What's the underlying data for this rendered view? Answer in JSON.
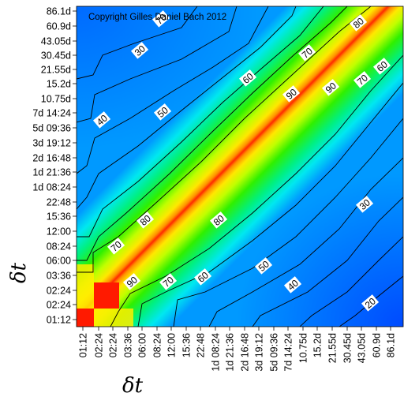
{
  "chart_data": {
    "type": "heatmap",
    "watermark": "Copyright Gilles Daniel Bach 2012",
    "xlabel": "δt",
    "ylabel": "δt",
    "x_ticks": [
      "01:12",
      "02:24",
      "02:24",
      "03:36",
      "06:00",
      "08:24",
      "12:00",
      "15:36",
      "22:48",
      "1d 08:24",
      "1d 21:36",
      "2d 16:48",
      "3d 19:12",
      "5d 09:36",
      "7d 14:24",
      "10.75d",
      "15.2d",
      "21.55d",
      "30.45d",
      "43.05d",
      "60.9d",
      "86.1d"
    ],
    "y_ticks": [
      "01:12",
      "02:24",
      "02:24",
      "03:36",
      "06:00",
      "08:24",
      "12:00",
      "15:36",
      "22:48",
      "1d 08:24",
      "1d 21:36",
      "2d 16:48",
      "3d 19:12",
      "5d 09:36",
      "7d 14:24",
      "10.75d",
      "15.2d",
      "21.55d",
      "30.45d",
      "43.05d",
      "60.9d",
      "86.1d"
    ],
    "contour_levels": [
      20,
      30,
      40,
      50,
      60,
      70,
      80,
      90
    ],
    "contour_labels": [
      "70",
      "80",
      "30",
      "70",
      "60",
      "90",
      "90",
      "70",
      "60",
      "50",
      "40",
      "80",
      "80",
      "70",
      "90",
      "50",
      "60",
      "70",
      "40",
      "30",
      "20"
    ],
    "color_scale": [
      "#0000ff",
      "#00ffff",
      "#00ff00",
      "#ffff00",
      "#ff0000"
    ],
    "value_range": [
      0,
      100
    ],
    "grid": false,
    "legend": "none"
  }
}
